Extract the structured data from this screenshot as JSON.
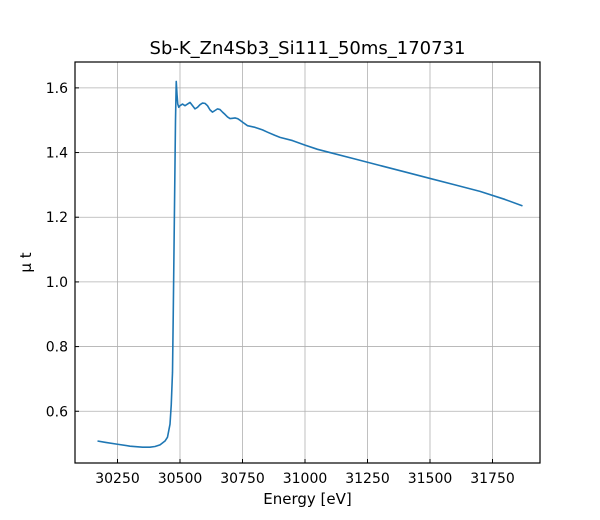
{
  "chart_data": {
    "type": "line",
    "title": "Sb-K_Zn4Sb3_Si111_50ms_170731",
    "xlabel": "Energy [eV]",
    "ylabel": "μ t",
    "xlim": [
      30080,
      31940
    ],
    "ylim": [
      0.44,
      1.68
    ],
    "xticks": [
      30250,
      30500,
      30750,
      31000,
      31250,
      31500,
      31750
    ],
    "yticks": [
      0.6,
      0.8,
      1.0,
      1.2,
      1.4,
      1.6
    ],
    "xtick_labels": [
      "30250",
      "30500",
      "30750",
      "31000",
      "31250",
      "31500",
      "31750"
    ],
    "ytick_labels": [
      "0.6",
      "0.8",
      "1.0",
      "1.2",
      "1.4",
      "1.6"
    ],
    "grid": true,
    "line_color": "#1f77b4",
    "series": [
      {
        "x": [
          30170,
          30200,
          30250,
          30300,
          30350,
          30380,
          30400,
          30420,
          30440,
          30450,
          30460,
          30465,
          30470,
          30473,
          30476,
          30479,
          30482,
          30485,
          30488,
          30491,
          30495,
          30500,
          30510,
          30520,
          30530,
          30540,
          30550,
          30560,
          30570,
          30580,
          30590,
          30600,
          30610,
          30620,
          30630,
          30640,
          30650,
          30660,
          30670,
          30680,
          30690,
          30700,
          30710,
          30720,
          30730,
          30740,
          30750,
          30770,
          30800,
          30830,
          30850,
          30880,
          30900,
          30950,
          31000,
          31050,
          31100,
          31200,
          31300,
          31400,
          31500,
          31600,
          31700,
          31800,
          31870
        ],
        "y": [
          0.508,
          0.504,
          0.498,
          0.492,
          0.489,
          0.489,
          0.491,
          0.496,
          0.508,
          0.52,
          0.56,
          0.62,
          0.72,
          0.9,
          1.1,
          1.3,
          1.5,
          1.62,
          1.58,
          1.55,
          1.54,
          1.545,
          1.55,
          1.545,
          1.55,
          1.555,
          1.545,
          1.535,
          1.54,
          1.548,
          1.553,
          1.552,
          1.545,
          1.532,
          1.525,
          1.53,
          1.535,
          1.533,
          1.525,
          1.518,
          1.51,
          1.505,
          1.506,
          1.507,
          1.505,
          1.5,
          1.494,
          1.483,
          1.478,
          1.47,
          1.463,
          1.453,
          1.447,
          1.437,
          1.423,
          1.41,
          1.4,
          1.38,
          1.36,
          1.34,
          1.32,
          1.3,
          1.28,
          1.255,
          1.235
        ]
      }
    ]
  }
}
